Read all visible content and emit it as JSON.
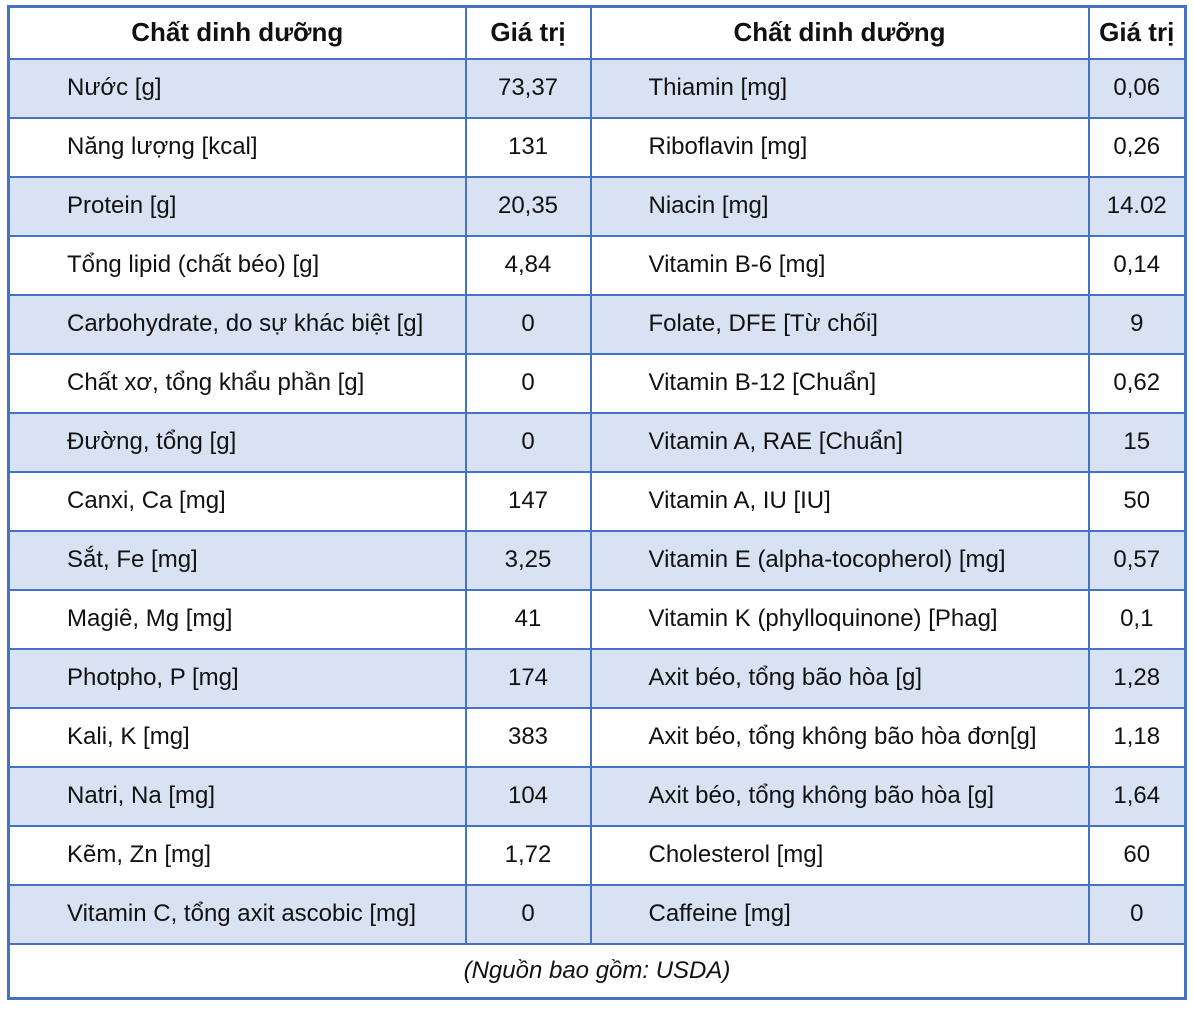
{
  "colors": {
    "border_blue": "#4472C4",
    "stripe_blue": "#D9E2F3",
    "background": "#FFFFFF",
    "text": "#111111"
  },
  "table": {
    "header": {
      "nutrient": "Chất dinh dưỡng",
      "value": "Giá trị"
    },
    "rows": [
      {
        "left": {
          "nutrient": "Nước [g]",
          "value": "73,37"
        },
        "right": {
          "nutrient": "Thiamin [mg]",
          "value": "0,06"
        }
      },
      {
        "left": {
          "nutrient": "Năng lượng [kcal]",
          "value": "131"
        },
        "right": {
          "nutrient": "Riboflavin [mg]",
          "value": "0,26"
        }
      },
      {
        "left": {
          "nutrient": "Protein [g]",
          "value": "20,35"
        },
        "right": {
          "nutrient": "Niacin [mg]",
          "value": "14.02"
        }
      },
      {
        "left": {
          "nutrient": "Tổng lipid (chất béo) [g]",
          "value": "4,84"
        },
        "right": {
          "nutrient": "Vitamin B-6 [mg]",
          "value": "0,14"
        }
      },
      {
        "left": {
          "nutrient": "Carbohydrate, do sự khác biệt [g]",
          "value": "0"
        },
        "right": {
          "nutrient": "Folate, DFE [Từ chối]",
          "value": "9"
        }
      },
      {
        "left": {
          "nutrient": "Chất xơ, tổng khẩu phần [g]",
          "value": "0"
        },
        "right": {
          "nutrient": "Vitamin B-12 [Chuẩn]",
          "value": "0,62"
        }
      },
      {
        "left": {
          "nutrient": "Đường, tổng [g]",
          "value": "0"
        },
        "right": {
          "nutrient": "Vitamin A, RAE [Chuẩn]",
          "value": "15"
        }
      },
      {
        "left": {
          "nutrient": "Canxi, Ca [mg]",
          "value": "147"
        },
        "right": {
          "nutrient": "Vitamin A, IU [IU]",
          "value": "50"
        }
      },
      {
        "left": {
          "nutrient": "Sắt, Fe [mg]",
          "value": "3,25"
        },
        "right": {
          "nutrient": "Vitamin E (alpha-tocopherol) [mg]",
          "value": "0,57"
        }
      },
      {
        "left": {
          "nutrient": "Magiê, Mg [mg]",
          "value": "41"
        },
        "right": {
          "nutrient": "Vitamin K (phylloquinone) [Phag]",
          "value": "0,1"
        }
      },
      {
        "left": {
          "nutrient": "Photpho, P [mg]",
          "value": "174"
        },
        "right": {
          "nutrient": "Axit béo, tổng bão hòa [g]",
          "value": "1,28"
        }
      },
      {
        "left": {
          "nutrient": "Kali, K [mg]",
          "value": "383"
        },
        "right": {
          "nutrient": "Axit béo, tổng không bão hòa đơn[g]",
          "value": "1,18"
        }
      },
      {
        "left": {
          "nutrient": "Natri, Na [mg]",
          "value": "104"
        },
        "right": {
          "nutrient": "Axit béo, tổng không bão hòa [g]",
          "value": "1,64"
        }
      },
      {
        "left": {
          "nutrient": "Kẽm, Zn [mg]",
          "value": "1,72"
        },
        "right": {
          "nutrient": "Cholesterol [mg]",
          "value": "60"
        }
      },
      {
        "left": {
          "nutrient": "Vitamin C, tổng axit ascobic [mg]",
          "value": "0"
        },
        "right": {
          "nutrient": "Caffeine [mg]",
          "value": "0"
        }
      }
    ],
    "footer": "(Nguồn bao gồm: USDA)"
  }
}
